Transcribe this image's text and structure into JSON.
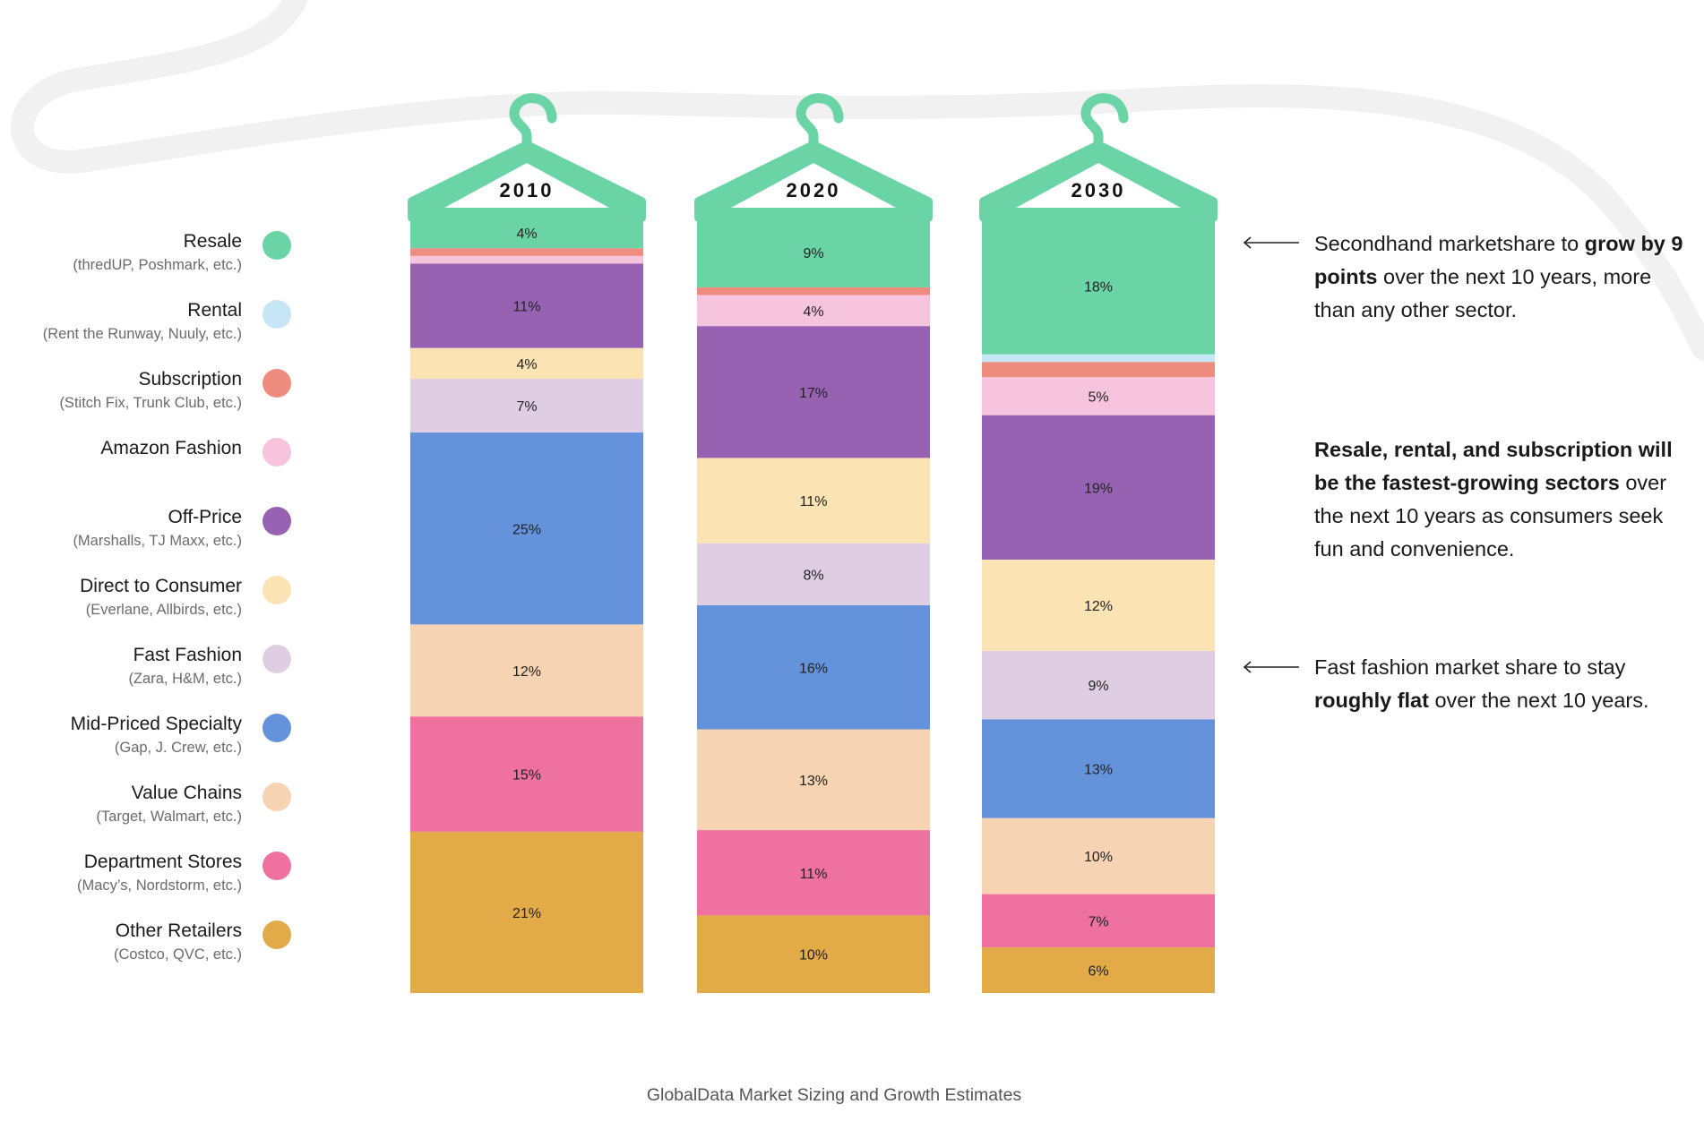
{
  "legend": [
    {
      "name": "Resale",
      "sub": "(thredUP, Poshmark, etc.)",
      "color": "#6bd4a7"
    },
    {
      "name": "Rental",
      "sub": "(Rent the Runway, Nuuly, etc.)",
      "color": "#c6e6f6"
    },
    {
      "name": "Subscription",
      "sub": "(Stitch Fix, Trunk Club, etc.)",
      "color": "#ef8c80"
    },
    {
      "name": "Amazon Fashion",
      "sub": "",
      "color": "#f6c4dc"
    },
    {
      "name": "Off-Price",
      "sub": "(Marshalls, TJ Maxx, etc.)",
      "color": "#9862b3"
    },
    {
      "name": "Direct to Consumer",
      "sub": "(Everlane, Allbirds, etc.)",
      "color": "#fbe3b4"
    },
    {
      "name": "Fast Fashion",
      "sub": "(Zara, H&M, etc.)",
      "color": "#dfcde3"
    },
    {
      "name": "Mid-Priced Specialty",
      "sub": "(Gap, J. Crew, etc.)",
      "color": "#6492db"
    },
    {
      "name": "Value Chains",
      "sub": "(Target, Walmart, etc.)",
      "color": "#f6d3b2"
    },
    {
      "name": "Department Stores",
      "sub": "(Macy’s, Nordstorm, etc.)",
      "color": "#ee719f"
    },
    {
      "name": "Other Retailers",
      "sub": "(Costco, QVC, etc.)",
      "color": "#e2ab48"
    }
  ],
  "chart_data": {
    "type": "bar",
    "stacked": true,
    "categories": [
      "2010",
      "2020",
      "2030"
    ],
    "series": [
      {
        "name": "Resale",
        "values": [
          4,
          9,
          18
        ],
        "labels": [
          "4%",
          "9%",
          "18%"
        ]
      },
      {
        "name": "Rental",
        "values": [
          0,
          0,
          1
        ],
        "labels": [
          "",
          "",
          ""
        ]
      },
      {
        "name": "Subscription",
        "values": [
          1,
          1,
          2
        ],
        "labels": [
          "",
          "",
          ""
        ]
      },
      {
        "name": "Amazon Fashion",
        "values": [
          1,
          4,
          5
        ],
        "labels": [
          "",
          "4%",
          "5%"
        ]
      },
      {
        "name": "Off-Price",
        "values": [
          11,
          17,
          19
        ],
        "labels": [
          "11%",
          "17%",
          "19%"
        ]
      },
      {
        "name": "Direct to Consumer",
        "values": [
          4,
          11,
          12
        ],
        "labels": [
          "4%",
          "11%",
          "12%"
        ]
      },
      {
        "name": "Fast Fashion",
        "values": [
          7,
          8,
          9
        ],
        "labels": [
          "7%",
          "8%",
          "9%"
        ]
      },
      {
        "name": "Mid-Priced Specialty",
        "values": [
          25,
          16,
          13
        ],
        "labels": [
          "25%",
          "16%",
          "13%"
        ]
      },
      {
        "name": "Value Chains",
        "values": [
          12,
          13,
          10
        ],
        "labels": [
          "12%",
          "13%",
          "10%"
        ]
      },
      {
        "name": "Department Stores",
        "values": [
          15,
          11,
          7
        ],
        "labels": [
          "15%",
          "11%",
          "7%"
        ]
      },
      {
        "name": "Other Retailers",
        "values": [
          21,
          10,
          6
        ],
        "labels": [
          "21%",
          "10%",
          "6%"
        ]
      }
    ]
  },
  "annotations": {
    "a1": {
      "t1": "Secondhand marketshare to ",
      "b1": "grow by 9 points",
      "t2": " over the next 10 years, more than any other sector."
    },
    "a2": {
      "b1": "Resale, rental, and subscription will be the fastest-growing sectors",
      "t1": " over the next 10 years as consumers seek fun and convenience."
    },
    "a3": {
      "t1": "Fast fashion market share to stay ",
      "b1": "roughly flat",
      "t2": " over the next 10 years."
    }
  },
  "source": "GlobalData Market Sizing and Growth Estimates"
}
